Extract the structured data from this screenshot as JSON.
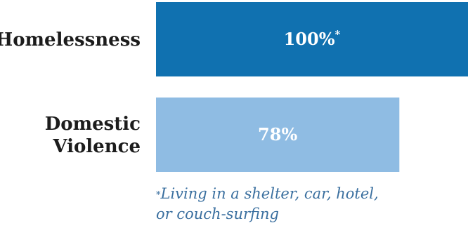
{
  "chart_data": {
    "type": "bar",
    "orientation": "horizontal",
    "categories": [
      "Homelessness",
      "Domestic Violence"
    ],
    "category_lines": [
      [
        "Homelessness"
      ],
      [
        "Domestic",
        "Violence"
      ]
    ],
    "values": [
      100,
      78
    ],
    "data_labels": [
      "100%",
      "78%"
    ],
    "data_label_marks": [
      "*",
      ""
    ],
    "bar_colors": [
      "#1071b0",
      "#8fbce3"
    ],
    "xlim": [
      0,
      100
    ],
    "grid": false,
    "legend": "none"
  },
  "footnote": {
    "mark": "*",
    "text_line1": "Living in a shelter, car, hotel,",
    "text_line2": "or couch-surfing"
  }
}
